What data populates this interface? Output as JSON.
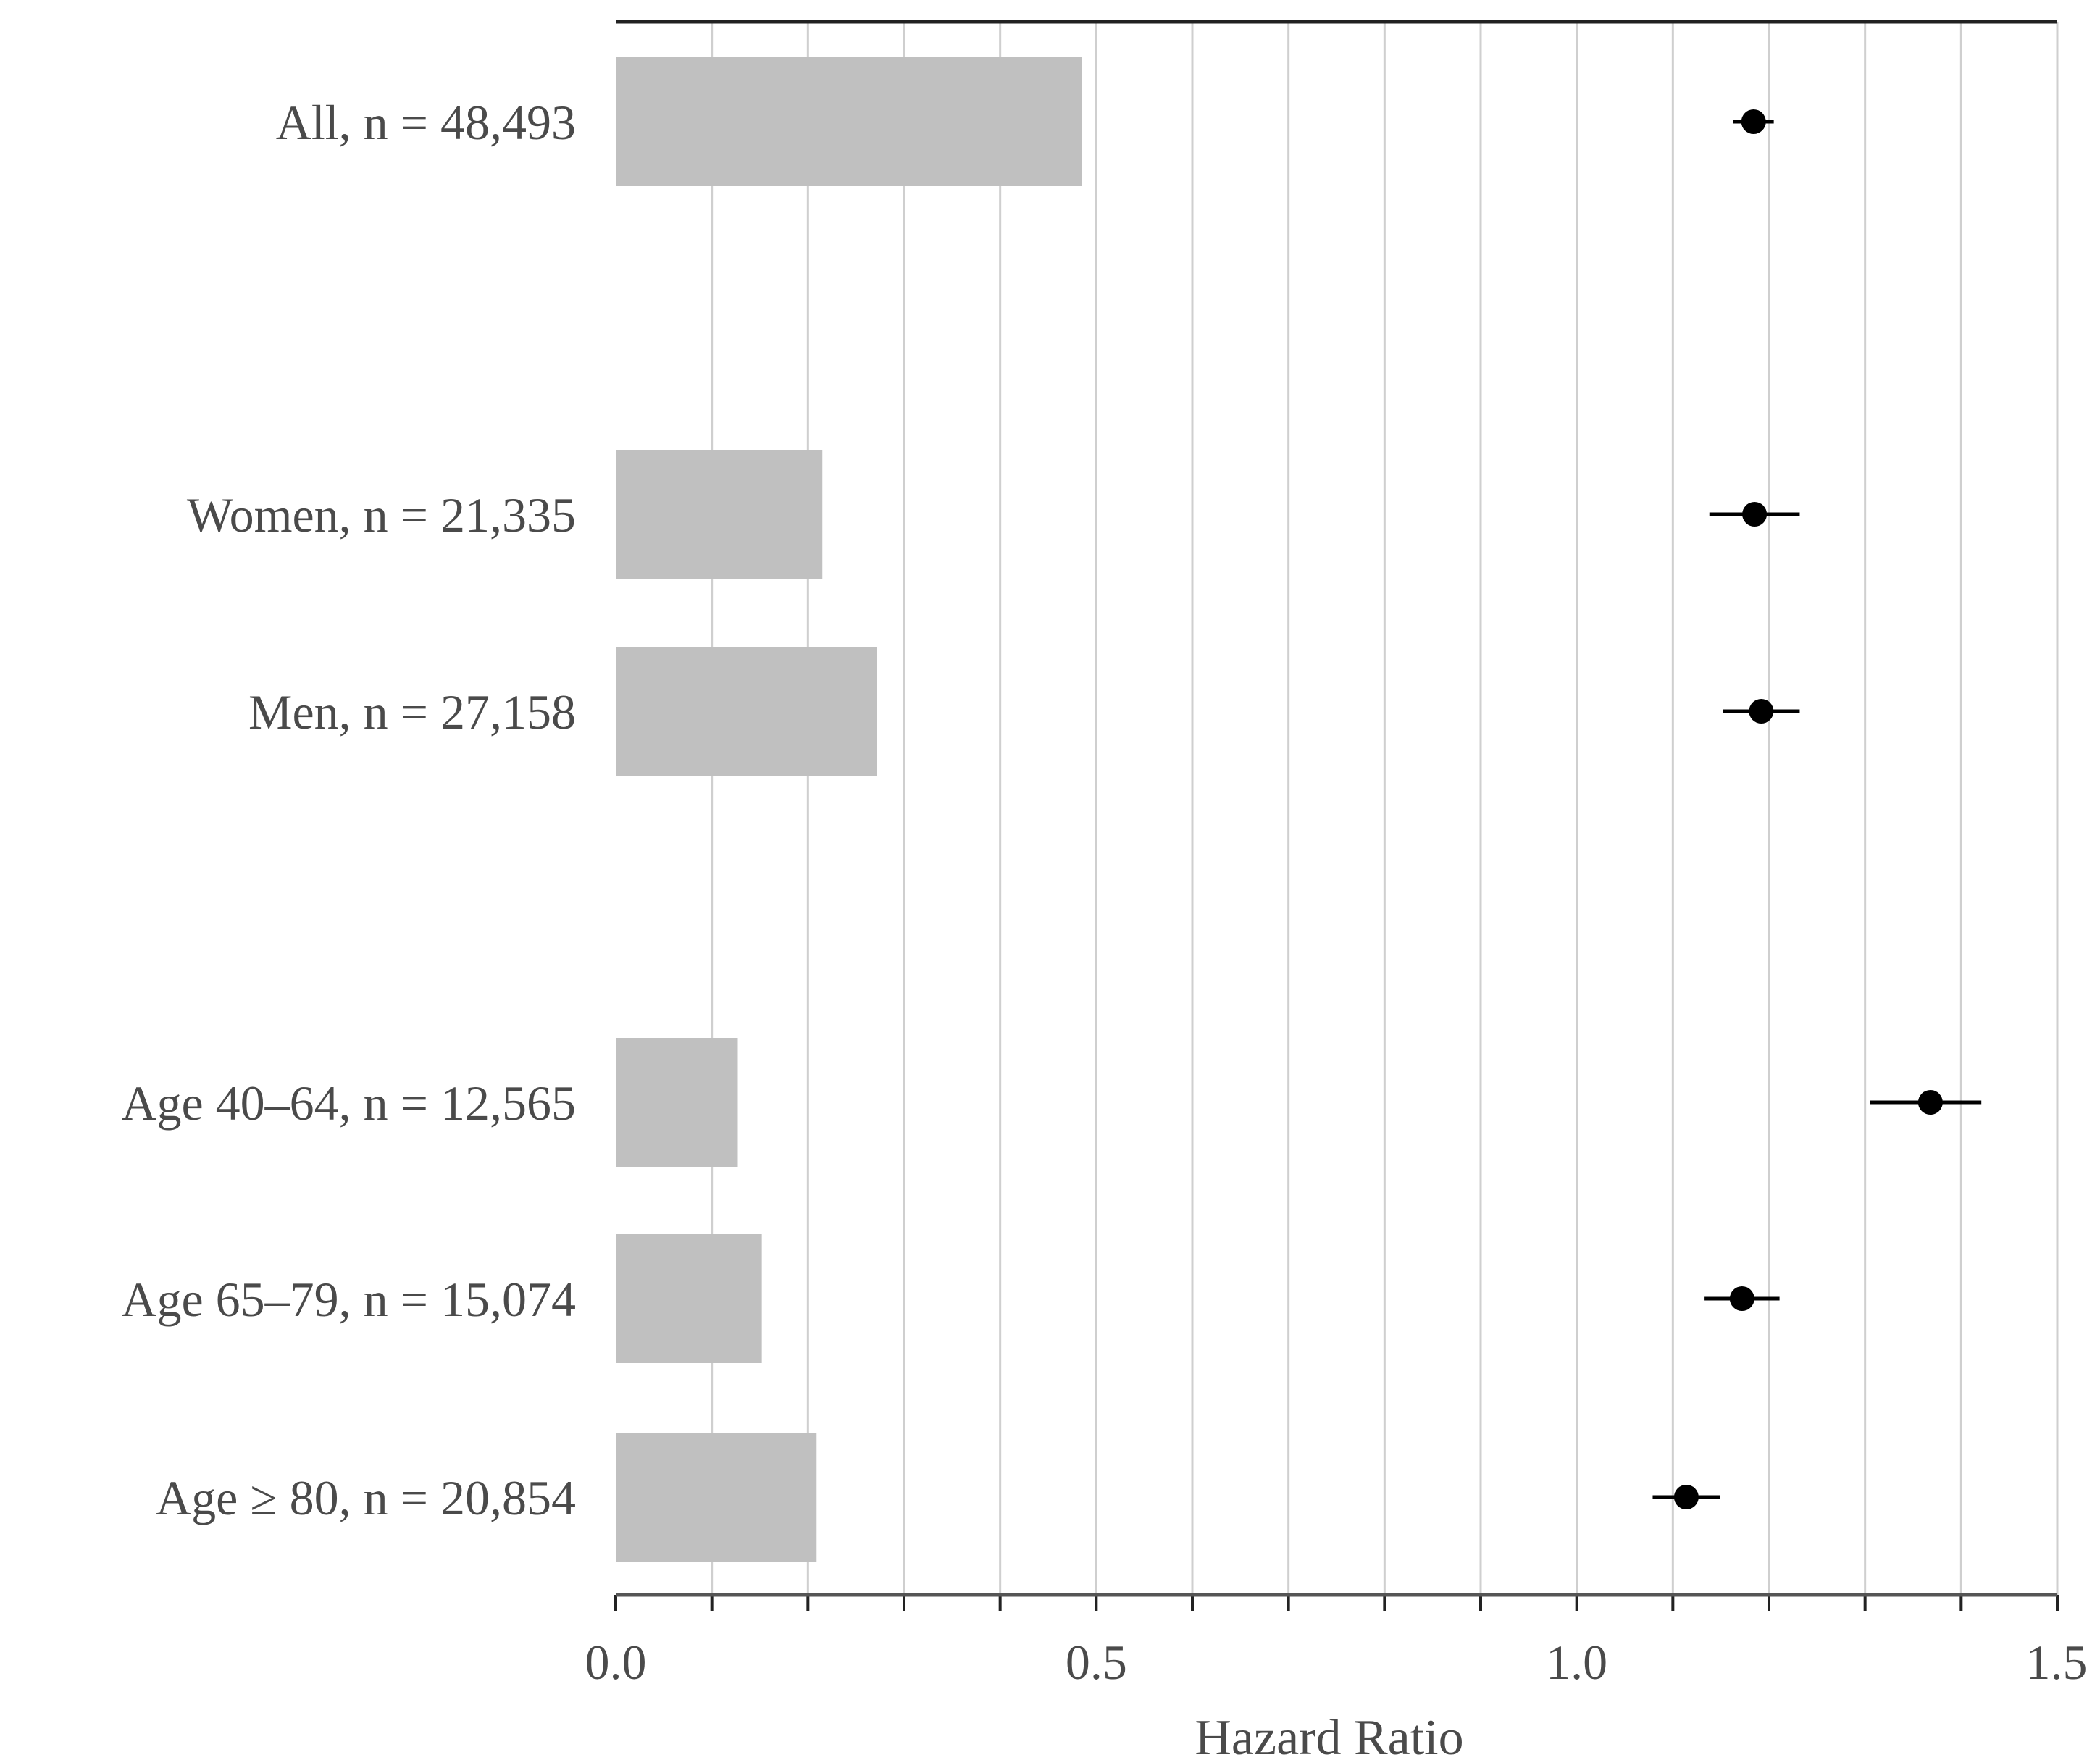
{
  "chart_data": {
    "type": "bar",
    "categories": [
      "All, n = 48,493",
      "Women, n = 21,335",
      "Men, n = 27,158",
      "Age 40–64, n = 12,565",
      "Age 65–79, n = 15,074",
      "Age ≥ 80, n = 20,854"
    ],
    "bar_values": [
      0.485,
      0.215,
      0.272,
      0.127,
      0.152,
      0.209
    ],
    "hazard_ratio": [
      1.184,
      1.185,
      1.192,
      1.368,
      1.172,
      1.114
    ],
    "ci_lower": [
      1.163,
      1.138,
      1.152,
      1.305,
      1.133,
      1.079
    ],
    "ci_upper": [
      1.205,
      1.232,
      1.232,
      1.421,
      1.211,
      1.149
    ],
    "xlabel": "Hazard Ratio",
    "ylabel": "",
    "title": "",
    "xlim": [
      0,
      1.5
    ],
    "xticks": [
      "0.0",
      "0.5",
      "1.0",
      "1.5"
    ],
    "minor_tick_step": 0.1,
    "grid": true,
    "colors": {
      "bar": "#c0c0c0",
      "marker": "#000000",
      "grid": "#cfcfcf",
      "axis": "#222222"
    }
  }
}
